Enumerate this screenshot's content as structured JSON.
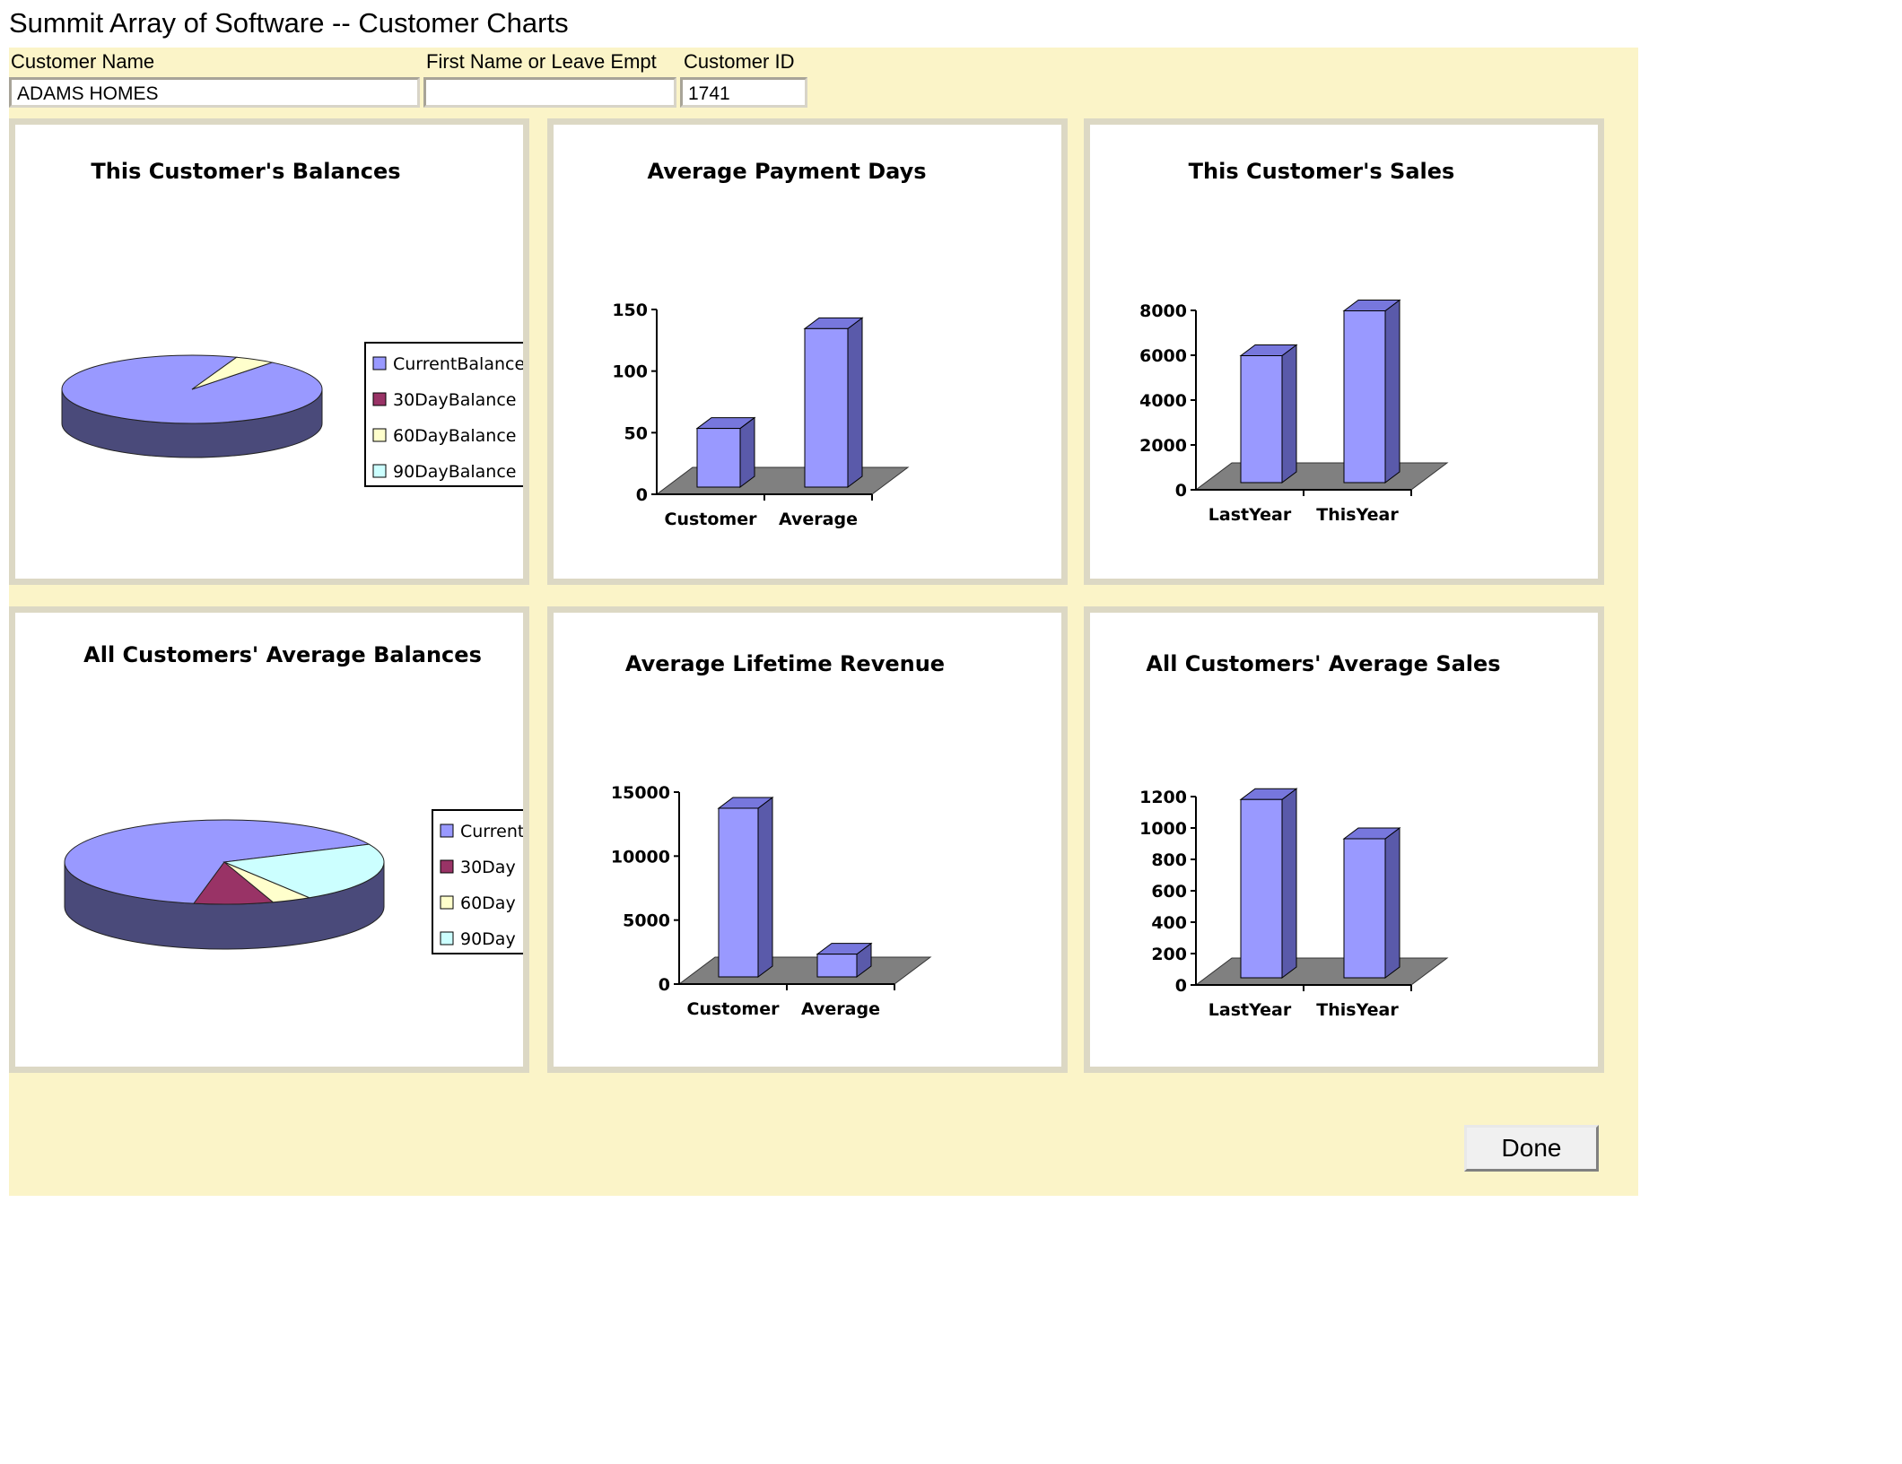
{
  "app": {
    "title": "Summit Array of Software -- Customer Charts"
  },
  "fields": {
    "customer_name": {
      "label": "Customer Name",
      "value": "ADAMS HOMES"
    },
    "first_name": {
      "label": "First Name or Leave Empt",
      "value": ""
    },
    "customer_id": {
      "label": "Customer ID",
      "value": "1741"
    }
  },
  "done_label": "Done",
  "colors": {
    "form_bg": "#fbf4c8",
    "bar": "#9999ff",
    "bar_top": "#7777dd",
    "bar_side": "#5a5aaa",
    "floor": "#808080",
    "pie_current": "#9999ff",
    "pie_30": "#993366",
    "pie_60": "#ffffcc",
    "pie_90": "#ccffff"
  },
  "chart_data": [
    {
      "id": "customer-balances",
      "type": "pie",
      "title": "This Customer's Balances",
      "labels": [
        "CurrentBalance",
        "30DayBalance",
        "60DayBalance",
        "90DayBalance"
      ],
      "values": [
        95,
        0,
        5,
        0
      ],
      "legend": "right"
    },
    {
      "id": "avg-payment-days",
      "type": "bar",
      "title": "Average Payment Days",
      "categories": [
        "Customer",
        "Average"
      ],
      "values": [
        52,
        133
      ],
      "ylim": [
        0,
        150
      ],
      "yticks": [
        "0",
        "50",
        "100",
        "150"
      ]
    },
    {
      "id": "customer-sales",
      "type": "bar",
      "title": "This Customer's Sales",
      "categories": [
        "LastYear",
        "ThisYear"
      ],
      "values": [
        5900,
        7900
      ],
      "ylim": [
        0,
        8000
      ],
      "yticks": [
        "0",
        "2000",
        "4000",
        "6000",
        "8000"
      ]
    },
    {
      "id": "all-avg-balances",
      "type": "pie",
      "title": "All Customers' Average Balances",
      "labels": [
        "Current",
        "30Day",
        "60Day",
        "90Day"
      ],
      "values": [
        65,
        8,
        4,
        23
      ],
      "legend": "right"
    },
    {
      "id": "avg-lifetime-revenue",
      "type": "bar",
      "title": "Average Lifetime Revenue",
      "categories": [
        "Customer",
        "Average"
      ],
      "values": [
        13600,
        2200
      ],
      "ylim": [
        0,
        15000
      ],
      "yticks": [
        "0",
        "5000",
        "10000",
        "15000"
      ]
    },
    {
      "id": "all-avg-sales",
      "type": "bar",
      "title": "All Customers' Average Sales",
      "categories": [
        "LastYear",
        "ThisYear"
      ],
      "values": [
        1170,
        920
      ],
      "ylim": [
        0,
        1200
      ],
      "yticks": [
        "0",
        "200",
        "400",
        "600",
        "800",
        "1000",
        "1200"
      ]
    }
  ]
}
